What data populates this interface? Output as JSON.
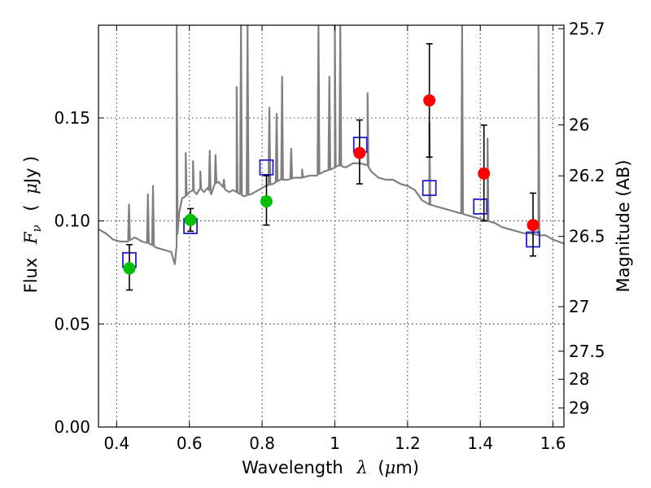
{
  "chart_data": {
    "type": "scatter",
    "title": "",
    "xlabel_text": "Wavelength",
    "xlabel_symbol": "λ",
    "xlabel_unit_open": "(",
    "xlabel_unit_mu": "μ",
    "xlabel_unit_close": "m)",
    "ylabel_text": "Flux",
    "ylabel_symbol_main": "F",
    "ylabel_symbol_sub": "ν",
    "ylabel_unit_open": "(",
    "ylabel_unit_mu": "μ",
    "ylabel_unit_close": "Jy )",
    "y2label": "Magnitude (AB)",
    "xlim": [
      0.35,
      1.63
    ],
    "ylim": [
      0.0,
      0.195
    ],
    "grid": true,
    "x_ticks": [
      0.4,
      0.6,
      0.8,
      1.0,
      1.2,
      1.4,
      1.6
    ],
    "x_tick_labels": [
      "0.4",
      "0.6",
      "0.8",
      "1",
      "1.2",
      "1.4",
      "1.6"
    ],
    "y_ticks": [
      0.0,
      0.05,
      0.1,
      0.15
    ],
    "y_tick_labels": [
      "0.00",
      "0.05",
      "0.10",
      "0.15"
    ],
    "y2_ticks": [
      {
        "label": "25.7",
        "flux": 0.1933
      },
      {
        "label": "26",
        "flux": 0.1466
      },
      {
        "label": "26.2",
        "flux": 0.1219
      },
      {
        "label": "26.5",
        "flux": 0.0925
      },
      {
        "label": "27",
        "flux": 0.0584
      },
      {
        "label": "27.5",
        "flux": 0.0368
      },
      {
        "label": "28",
        "flux": 0.0232
      },
      {
        "label": "29",
        "flux": 0.0092
      }
    ],
    "series": [
      {
        "kind": "line",
        "color": "#808080",
        "points": [
          [
            0.35,
            0.096
          ],
          [
            0.37,
            0.094
          ],
          [
            0.39,
            0.091
          ],
          [
            0.41,
            0.09
          ],
          [
            0.43,
            0.09
          ],
          [
            0.45,
            0.092
          ],
          [
            0.47,
            0.09
          ],
          [
            0.49,
            0.089
          ],
          [
            0.51,
            0.087
          ],
          [
            0.53,
            0.086
          ],
          [
            0.55,
            0.085
          ],
          [
            0.56,
            0.079
          ],
          [
            0.565,
            0.088
          ],
          [
            0.572,
            0.104
          ],
          [
            0.58,
            0.111
          ],
          [
            0.59,
            0.112
          ],
          [
            0.6,
            0.114
          ],
          [
            0.61,
            0.115
          ],
          [
            0.62,
            0.113
          ],
          [
            0.63,
            0.116
          ],
          [
            0.64,
            0.114
          ],
          [
            0.65,
            0.116
          ],
          [
            0.66,
            0.113
          ],
          [
            0.67,
            0.118
          ],
          [
            0.68,
            0.119
          ],
          [
            0.69,
            0.117
          ],
          [
            0.7,
            0.115
          ],
          [
            0.71,
            0.114
          ],
          [
            0.72,
            0.115
          ],
          [
            0.73,
            0.114
          ],
          [
            0.75,
            0.112
          ],
          [
            0.77,
            0.113
          ],
          [
            0.79,
            0.115
          ],
          [
            0.81,
            0.117
          ],
          [
            0.83,
            0.118
          ],
          [
            0.85,
            0.12
          ],
          [
            0.87,
            0.12
          ],
          [
            0.89,
            0.121
          ],
          [
            0.91,
            0.121
          ],
          [
            0.93,
            0.122
          ],
          [
            0.95,
            0.122
          ],
          [
            0.97,
            0.124
          ],
          [
            0.99,
            0.125
          ],
          [
            1.0,
            0.126
          ],
          [
            1.01,
            0.127
          ],
          [
            1.03,
            0.126
          ],
          [
            1.05,
            0.128
          ],
          [
            1.07,
            0.128
          ],
          [
            1.09,
            0.127
          ],
          [
            1.1,
            0.124
          ],
          [
            1.12,
            0.121
          ],
          [
            1.14,
            0.12
          ],
          [
            1.16,
            0.12
          ],
          [
            1.18,
            0.118
          ],
          [
            1.2,
            0.117
          ],
          [
            1.22,
            0.115
          ],
          [
            1.24,
            0.11
          ],
          [
            1.26,
            0.108
          ],
          [
            1.28,
            0.107
          ],
          [
            1.3,
            0.106
          ],
          [
            1.32,
            0.105
          ],
          [
            1.34,
            0.104
          ],
          [
            1.36,
            0.103
          ],
          [
            1.38,
            0.102
          ],
          [
            1.4,
            0.101
          ],
          [
            1.42,
            0.1
          ],
          [
            1.44,
            0.099
          ],
          [
            1.46,
            0.097
          ],
          [
            1.48,
            0.096
          ],
          [
            1.5,
            0.095
          ],
          [
            1.52,
            0.094
          ],
          [
            1.54,
            0.094
          ],
          [
            1.56,
            0.093
          ],
          [
            1.58,
            0.093
          ],
          [
            1.6,
            0.091
          ],
          [
            1.63,
            0.089
          ]
        ],
        "spikes": [
          [
            0.434,
            0.108
          ],
          [
            0.486,
            0.113
          ],
          [
            0.5,
            0.117
          ],
          [
            0.565,
            0.195
          ],
          [
            0.59,
            0.133
          ],
          [
            0.61,
            0.129
          ],
          [
            0.63,
            0.124
          ],
          [
            0.656,
            0.134
          ],
          [
            0.672,
            0.132
          ],
          [
            0.695,
            0.12
          ],
          [
            0.73,
            0.165
          ],
          [
            0.742,
            0.195
          ],
          [
            0.76,
            0.195
          ],
          [
            0.82,
            0.155
          ],
          [
            0.84,
            0.152
          ],
          [
            0.855,
            0.17
          ],
          [
            0.88,
            0.135
          ],
          [
            0.91,
            0.125
          ],
          [
            0.955,
            0.195
          ],
          [
            0.985,
            0.17
          ],
          [
            1.0,
            0.195
          ],
          [
            1.015,
            0.195
          ],
          [
            1.09,
            0.162
          ],
          [
            1.26,
            0.148
          ],
          [
            1.35,
            0.195
          ],
          [
            1.42,
            0.14
          ],
          [
            1.56,
            0.195
          ]
        ]
      },
      {
        "kind": "markers",
        "marker": "open-square",
        "color": "#1f1fd1",
        "points": [
          [
            0.435,
            0.081
          ],
          [
            0.603,
            0.0975
          ],
          [
            0.812,
            0.126
          ],
          [
            1.07,
            0.137
          ],
          [
            1.26,
            0.116
          ],
          [
            1.4,
            0.107
          ],
          [
            1.545,
            0.091
          ]
        ]
      },
      {
        "kind": "markers",
        "marker": "filled-circle",
        "color": "#00c000",
        "points": [
          [
            0.435,
            0.077,
            0.0665,
            0.0885
          ],
          [
            0.603,
            0.1005,
            0.095,
            0.106
          ],
          [
            0.812,
            0.1095,
            0.098,
            0.122
          ]
        ]
      },
      {
        "kind": "markers",
        "marker": "filled-circle",
        "color": "#ff0000",
        "points": [
          [
            1.068,
            0.133,
            0.118,
            0.149
          ],
          [
            1.26,
            0.1585,
            0.131,
            0.186
          ],
          [
            1.41,
            0.123,
            0.1,
            0.1465
          ],
          [
            1.545,
            0.098,
            0.083,
            0.1135
          ]
        ]
      }
    ]
  }
}
